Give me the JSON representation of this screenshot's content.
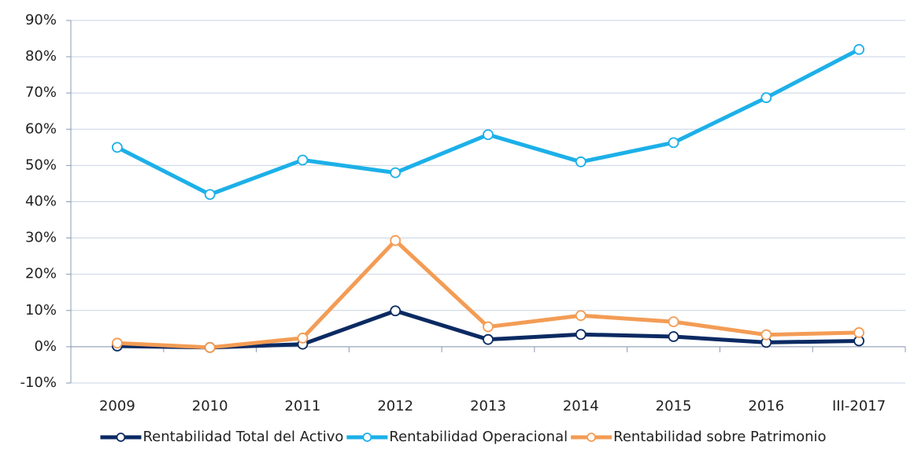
{
  "chart_data": {
    "type": "line",
    "categories": [
      "2009",
      "2010",
      "2011",
      "2012",
      "2013",
      "2014",
      "2015",
      "2016",
      "III-2017"
    ],
    "series": [
      {
        "name": "Rentabilidad Total del Activo",
        "color": "#0b2a63",
        "values": [
          0.2,
          -0.2,
          0.7,
          9.9,
          2.0,
          3.4,
          2.8,
          1.2,
          1.6
        ]
      },
      {
        "name": "Rentabilidad Operacional",
        "color": "#1cb0e8",
        "values": [
          55.0,
          42.0,
          51.5,
          48.0,
          58.5,
          51.0,
          56.3,
          68.7,
          82.0
        ]
      },
      {
        "name": "Rentabilidad sobre Patrimonio",
        "color": "#f39c55",
        "values": [
          1.0,
          -0.2,
          2.4,
          29.3,
          5.5,
          8.6,
          6.9,
          3.3,
          3.9
        ]
      }
    ],
    "ylim": [
      -10,
      90
    ],
    "yticks": [
      {
        "value": -10,
        "label": "-10%"
      },
      {
        "value": 0,
        "label": "0%"
      },
      {
        "value": 10,
        "label": "10%"
      },
      {
        "value": 20,
        "label": "20%"
      },
      {
        "value": 30,
        "label": "30%"
      },
      {
        "value": 40,
        "label": "40%"
      },
      {
        "value": 50,
        "label": "50%"
      },
      {
        "value": 60,
        "label": "60%"
      },
      {
        "value": 70,
        "label": "70%"
      },
      {
        "value": 80,
        "label": "80%"
      },
      {
        "value": 90,
        "label": "90%"
      }
    ],
    "grid": true,
    "legend": "bottom"
  }
}
